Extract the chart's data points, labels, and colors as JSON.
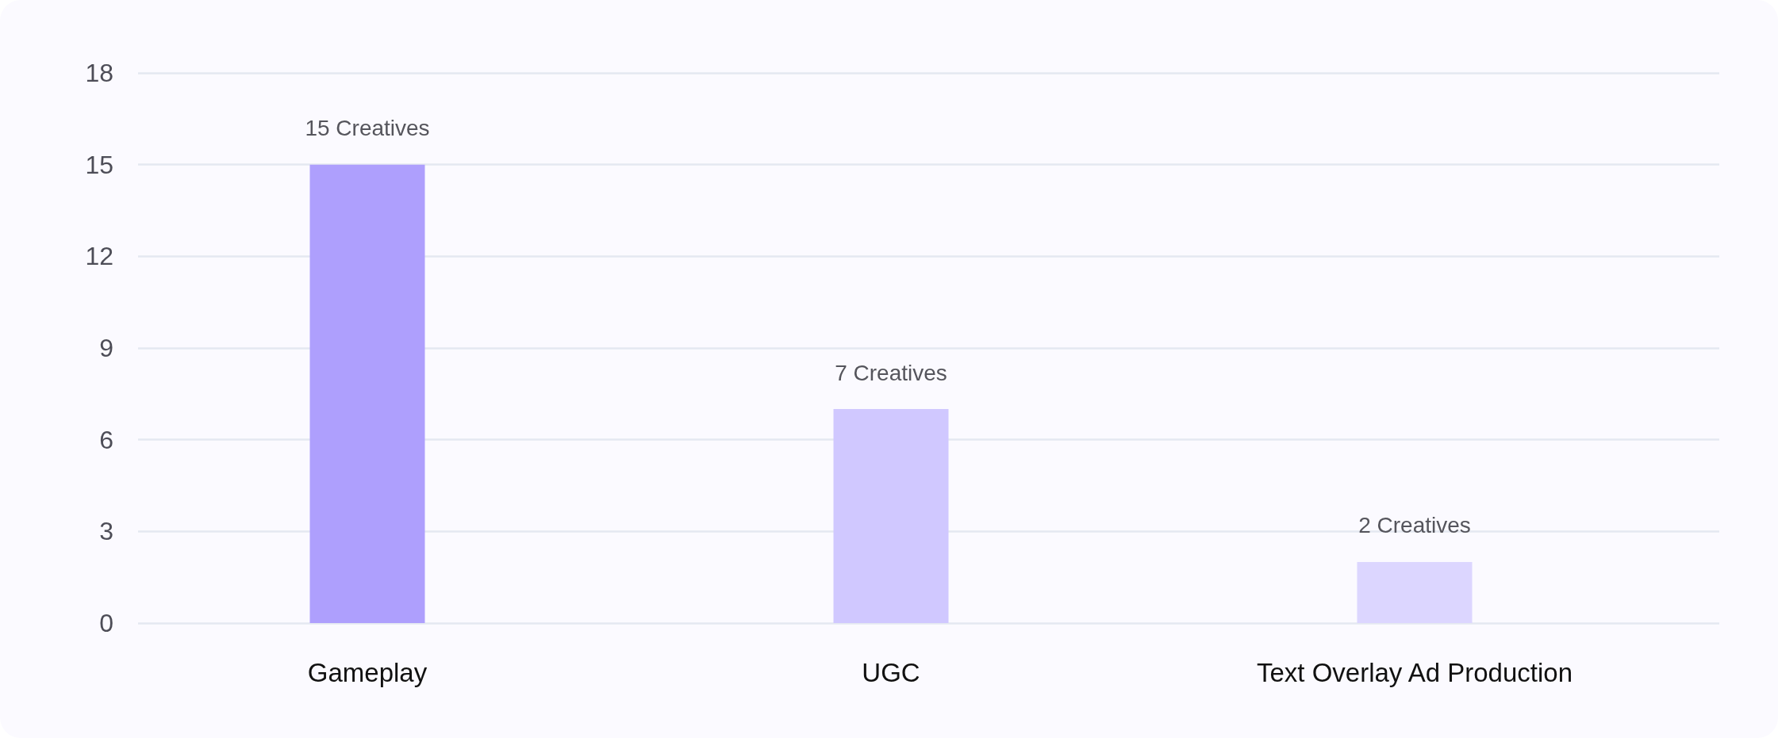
{
  "chart_data": {
    "type": "bar",
    "categories": [
      "Gameplay",
      "UGC",
      "Text Overlay Ad Production"
    ],
    "values": [
      15,
      7,
      2
    ],
    "colors": [
      "#ae9ffd",
      "#d0c8ff",
      "#dcd6ff"
    ],
    "value_labels": [
      "15 Creatives",
      "7 Creatives",
      "2 Creatives"
    ],
    "ylim": [
      0,
      18
    ],
    "yticks": [
      0,
      3,
      6,
      9,
      12,
      15,
      18
    ],
    "grid": "y"
  }
}
